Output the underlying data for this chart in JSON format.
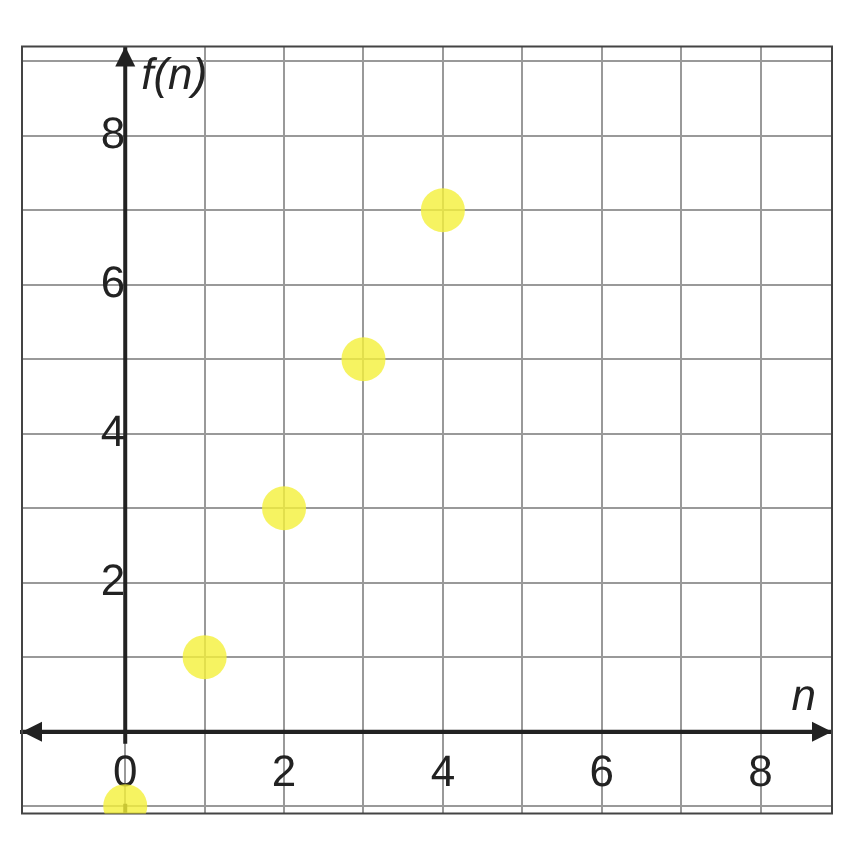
{
  "chart_data": {
    "type": "scatter",
    "xlabel": "n",
    "ylabel": "f(n)",
    "x": [
      0,
      1,
      2,
      3,
      4
    ],
    "series": [
      {
        "color": "#f4f03a",
        "values": [
          -1,
          1,
          3,
          5,
          7
        ]
      }
    ],
    "xlim": [
      -1.3,
      8.9
    ],
    "ylim": [
      -1.1,
      9.2
    ],
    "xticks": [
      0,
      {
        "value": 1,
        "label": null
      },
      2,
      {
        "value": 3,
        "label": null
      },
      4,
      {
        "value": 5,
        "label": null
      },
      6,
      {
        "value": 7,
        "label": null
      },
      8
    ],
    "yticks": [
      {
        "value": -1,
        "label": null
      },
      {
        "value": 0,
        "label": null
      },
      {
        "value": 1,
        "label": null
      },
      2,
      {
        "value": 3,
        "label": null
      },
      4,
      {
        "value": 5,
        "label": null
      },
      6,
      {
        "value": 7,
        "label": null
      },
      8,
      {
        "value": 9,
        "label": null
      }
    ],
    "grid": true,
    "marker": "circle",
    "legend": false
  }
}
